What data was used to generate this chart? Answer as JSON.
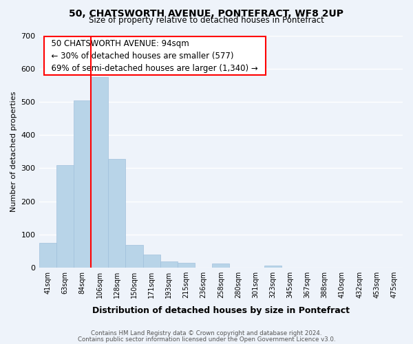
{
  "title": "50, CHATSWORTH AVENUE, PONTEFRACT, WF8 2UP",
  "subtitle": "Size of property relative to detached houses in Pontefract",
  "xlabel": "Distribution of detached houses by size in Pontefract",
  "ylabel": "Number of detached properties",
  "categories": [
    "41sqm",
    "63sqm",
    "84sqm",
    "106sqm",
    "128sqm",
    "150sqm",
    "171sqm",
    "193sqm",
    "215sqm",
    "236sqm",
    "258sqm",
    "280sqm",
    "301sqm",
    "323sqm",
    "345sqm",
    "367sqm",
    "388sqm",
    "410sqm",
    "432sqm",
    "453sqm",
    "475sqm"
  ],
  "values": [
    75,
    310,
    505,
    575,
    328,
    68,
    40,
    18,
    15,
    0,
    12,
    0,
    0,
    7,
    0,
    0,
    0,
    0,
    0,
    0,
    0
  ],
  "bar_color": "#b8d4e8",
  "bar_edge_color": "#a0c0dc",
  "annotation_title": "50 CHATSWORTH AVENUE: 94sqm",
  "annotation_line1": "← 30% of detached houses are smaller (577)",
  "annotation_line2": "69% of semi-detached houses are larger (1,340) →",
  "ylim": [
    0,
    700
  ],
  "yticks": [
    0,
    100,
    200,
    300,
    400,
    500,
    600,
    700
  ],
  "footnote1": "Contains HM Land Registry data © Crown copyright and database right 2024.",
  "footnote2": "Contains public sector information licensed under the Open Government Licence v3.0.",
  "background_color": "#eef3fa"
}
